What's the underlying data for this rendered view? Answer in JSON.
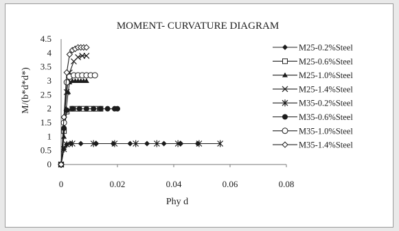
{
  "chart_data": {
    "type": "scatter",
    "title": "MOMENT- CURVATURE DIAGRAM",
    "xlabel": "Phy d",
    "ylabel": "M/(b*d*d*)",
    "xlim": [
      0,
      0.08
    ],
    "ylim": [
      0,
      4.5
    ],
    "x_ticks": [
      "0",
      "0.02",
      "0.04",
      "0.06",
      "0.08"
    ],
    "y_ticks": [
      "0",
      "0.5",
      "1",
      "1.5",
      "2",
      "2.5",
      "3",
      "3.5",
      "4",
      "4.5"
    ],
    "grid": false,
    "legend_position": "right",
    "series": [
      {
        "name": "M25-0.2%Steel",
        "marker": "diamond-filled",
        "color": "#1c1c1c",
        "x": [
          0,
          0.001,
          0.002,
          0.0035,
          0.007,
          0.0125,
          0.0185,
          0.0245,
          0.0305,
          0.0365,
          0.0425,
          0.0485
        ],
        "y": [
          0,
          0.55,
          0.72,
          0.75,
          0.75,
          0.75,
          0.75,
          0.75,
          0.75,
          0.75,
          0.75,
          0.75
        ]
      },
      {
        "name": "M25-0.6%Steel",
        "marker": "square-open",
        "color": "#1c1c1c",
        "x": [
          0,
          0.001,
          0.002,
          0.004,
          0.006,
          0.008,
          0.01,
          0.012,
          0.014
        ],
        "y": [
          0,
          1.2,
          1.9,
          2.0,
          2.0,
          2.0,
          2.0,
          2.0,
          2.0
        ]
      },
      {
        "name": "M25-1.0%Steel",
        "marker": "triangle-filled",
        "color": "#1c1c1c",
        "x": [
          0,
          0.001,
          0.0018,
          0.0025,
          0.003,
          0.004,
          0.005,
          0.006,
          0.007,
          0.008,
          0.009
        ],
        "y": [
          0,
          1.0,
          2.0,
          2.6,
          2.95,
          3.0,
          3.0,
          3.0,
          3.0,
          3.0,
          3.0
        ]
      },
      {
        "name": "M25-1.4%Steel",
        "marker": "x",
        "color": "#1c1c1c",
        "x": [
          0,
          0.001,
          0.002,
          0.003,
          0.0045,
          0.006,
          0.0075,
          0.009
        ],
        "y": [
          0,
          1.6,
          2.6,
          3.3,
          3.7,
          3.85,
          3.9,
          3.9
        ]
      },
      {
        "name": "M35-0.2%Steel",
        "marker": "asterisk",
        "color": "#1c1c1c",
        "x": [
          0,
          0.001,
          0.002,
          0.004,
          0.0115,
          0.019,
          0.0265,
          0.034,
          0.0415,
          0.049,
          0.0565
        ],
        "y": [
          0,
          0.55,
          0.72,
          0.75,
          0.75,
          0.75,
          0.75,
          0.75,
          0.75,
          0.75,
          0.75
        ]
      },
      {
        "name": "M35-0.6%Steel",
        "marker": "circle-filled",
        "color": "#1c1c1c",
        "x": [
          0,
          0.001,
          0.002,
          0.004,
          0.0065,
          0.009,
          0.0115,
          0.014,
          0.0165,
          0.019,
          0.02
        ],
        "y": [
          0,
          1.3,
          1.95,
          2.0,
          2.0,
          2.0,
          2.0,
          2.0,
          2.0,
          2.0,
          2.0
        ]
      },
      {
        "name": "M35-1.0%Steel",
        "marker": "circle-open",
        "color": "#1c1c1c",
        "x": [
          0,
          0.001,
          0.002,
          0.003,
          0.0045,
          0.006,
          0.0075,
          0.009,
          0.0105,
          0.012
        ],
        "y": [
          0,
          1.5,
          2.95,
          3.15,
          3.2,
          3.2,
          3.2,
          3.2,
          3.2,
          3.2
        ]
      },
      {
        "name": "M35-1.4%Steel",
        "marker": "diamond-open",
        "color": "#1c1c1c",
        "x": [
          0,
          0.001,
          0.002,
          0.003,
          0.004,
          0.005,
          0.006,
          0.007,
          0.008,
          0.009
        ],
        "y": [
          0,
          1.7,
          3.3,
          3.95,
          4.1,
          4.15,
          4.2,
          4.2,
          4.2,
          4.2
        ]
      }
    ]
  }
}
